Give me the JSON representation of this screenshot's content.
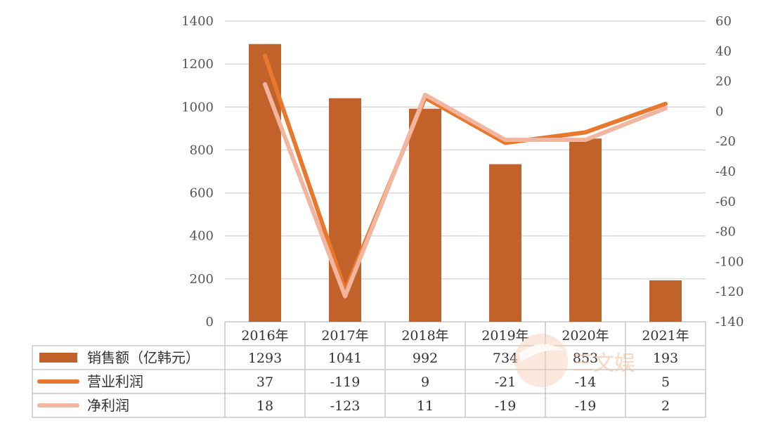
{
  "chart_data": {
    "type": "bar+line",
    "title": "",
    "categories": [
      "2016年",
      "2017年",
      "2018年",
      "2019年",
      "2020年",
      "2021年"
    ],
    "left_axis": {
      "min": 0,
      "max": 1400,
      "ticks": [
        "0",
        "200",
        "400",
        "600",
        "800",
        "1000",
        "1200",
        "1400"
      ]
    },
    "right_axis": {
      "min": -140,
      "max": 60,
      "ticks": [
        "-140",
        "-120",
        "-100",
        "-80",
        "-60",
        "-40",
        "-20",
        "0",
        "20",
        "40",
        "60"
      ]
    },
    "grid": true,
    "legend_placement": "data-table-left",
    "series": [
      {
        "name": "销售额（亿韩元）",
        "kind": "bar",
        "axis": "left",
        "color": "#c0622a",
        "values": [
          1293,
          1041,
          992,
          734,
          853,
          193
        ],
        "labels": [
          "1293",
          "1041",
          "992",
          "734",
          "853",
          "193"
        ]
      },
      {
        "name": "营业利润",
        "kind": "line",
        "axis": "right",
        "color": "#e8782e",
        "values": [
          37,
          -119,
          9,
          -21,
          -14,
          5
        ],
        "labels": [
          "37",
          "-119",
          "9",
          "-21",
          "-14",
          "5"
        ]
      },
      {
        "name": "净利润",
        "kind": "line",
        "axis": "right",
        "color": "#f2b6a0",
        "values": [
          18,
          -123,
          11,
          -19,
          -19,
          2
        ],
        "labels": [
          "18",
          "-123",
          "11",
          "-19",
          "-19",
          "2"
        ]
      }
    ]
  },
  "watermark": {
    "text": "三文娱"
  }
}
